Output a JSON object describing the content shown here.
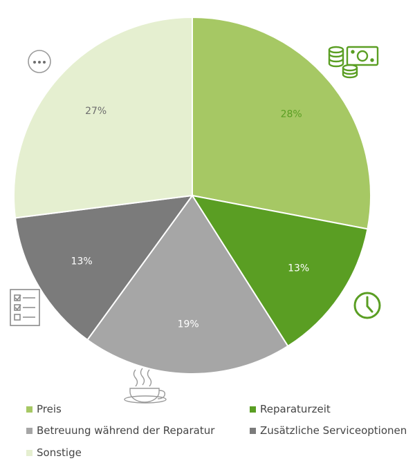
{
  "chart_data": {
    "type": "pie",
    "categories": [
      "Preis",
      "Reparaturzeit",
      "Betreuung während der Reparatur",
      "Zusätzliche Serviceoptionen",
      "Sonstige"
    ],
    "values": [
      28,
      13,
      19,
      13,
      27
    ],
    "labels": [
      "28%",
      "13%",
      "19%",
      "13%",
      "27%"
    ],
    "colors": [
      "#a6c864",
      "#5a9e23",
      "#a6a6a6",
      "#7b7b7b",
      "#e5efd0"
    ],
    "label_colors": [
      "#5a9e23",
      "#ffffff",
      "#ffffff",
      "#ffffff",
      "#6e6e6e"
    ],
    "icons": [
      "money-icon",
      "clock-icon",
      "coffee-cup-icon",
      "checklist-icon",
      "more-icon"
    ],
    "legend_placement": "bottom"
  }
}
